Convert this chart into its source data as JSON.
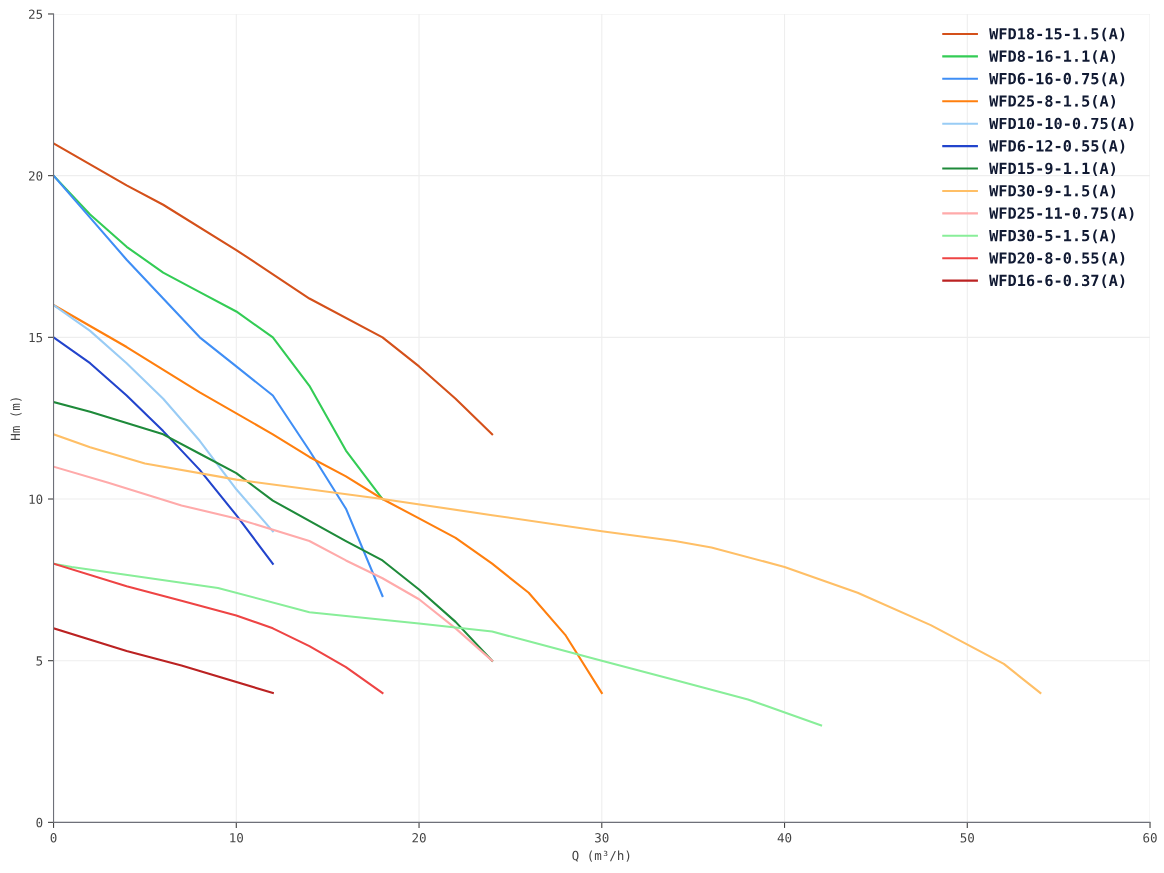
{
  "chart_data": {
    "type": "line",
    "xlabel": "Q (m³/h)",
    "ylabel": "Hm (m)",
    "xlim": [
      0,
      60
    ],
    "ylim": [
      0,
      25
    ],
    "xticks": [
      0,
      10,
      20,
      30,
      40,
      50,
      60
    ],
    "yticks": [
      0,
      5,
      10,
      15,
      20,
      25
    ],
    "grid": true,
    "legend": "top right",
    "marker": "none",
    "line_style": "solid",
    "series": [
      {
        "name": "WFD18-15-1.5(A)",
        "color": "#d4501a",
        "x": [
          0,
          4,
          6,
          10,
          14,
          18,
          20,
          22,
          24
        ],
        "values": [
          21,
          19.7,
          19.1,
          17.7,
          16.2,
          15.0,
          14.1,
          13.1,
          12
        ]
      },
      {
        "name": "WFD8-16-1.1(A)",
        "color": "#33cc55",
        "x": [
          0,
          2,
          4,
          6,
          8,
          10,
          12,
          14,
          16,
          18
        ],
        "values": [
          20,
          18.8,
          17.8,
          17.0,
          16.4,
          15.8,
          15.0,
          13.5,
          11.5,
          10
        ]
      },
      {
        "name": "WFD6-16-0.75(A)",
        "color": "#3f8ef5",
        "x": [
          0,
          2,
          4,
          6,
          8,
          10,
          12,
          14,
          16,
          18
        ],
        "values": [
          20,
          18.7,
          17.4,
          16.2,
          15.0,
          14.1,
          13.2,
          11.5,
          9.7,
          7.0
        ]
      },
      {
        "name": "WFD25-8-1.5(A)",
        "color": "#ff7f0e",
        "x": [
          0,
          4,
          8,
          12,
          14,
          16,
          18,
          20,
          22,
          24,
          26,
          28,
          30
        ],
        "values": [
          16,
          14.7,
          13.3,
          12.0,
          11.3,
          10.7,
          10,
          9.4,
          8.8,
          8.0,
          7.1,
          5.8,
          4
        ]
      },
      {
        "name": "WFD10-10-0.75(A)",
        "color": "#99ccf5",
        "x": [
          0,
          2,
          4,
          6,
          8,
          10,
          12
        ],
        "values": [
          16,
          15.2,
          14.2,
          13.1,
          11.8,
          10.3,
          9
        ]
      },
      {
        "name": "WFD6-12-0.55(A)",
        "color": "#2244cc",
        "x": [
          0,
          2,
          4,
          6,
          8,
          10,
          12
        ],
        "values": [
          15,
          14.2,
          13.2,
          12.1,
          10.9,
          9.5,
          8
        ]
      },
      {
        "name": "WFD15-9-1.1(A)",
        "color": "#1e8a3a",
        "x": [
          0,
          2,
          6,
          8,
          10,
          12,
          16,
          18,
          20,
          22,
          24
        ],
        "values": [
          13,
          12.7,
          12,
          11.4,
          10.8,
          9.95,
          8.7,
          8.1,
          7.2,
          6.2,
          5
        ]
      },
      {
        "name": "WFD30-9-1.5(A)",
        "color": "#ffbf66",
        "x": [
          0,
          2,
          5,
          10,
          18,
          24,
          30,
          34,
          36,
          40,
          44,
          48,
          52,
          54
        ],
        "values": [
          12,
          11.6,
          11.1,
          10.6,
          10,
          9.5,
          9.0,
          8.7,
          8.5,
          7.9,
          7.1,
          6.1,
          4.9,
          4
        ]
      },
      {
        "name": "WFD25-11-0.75(A)",
        "color": "#ffaaaa",
        "x": [
          0,
          3,
          7,
          10,
          14,
          16,
          18,
          20,
          22,
          24
        ],
        "values": [
          11,
          10.5,
          9.8,
          9.4,
          8.7,
          8.1,
          7.55,
          6.9,
          6.0,
          5
        ]
      },
      {
        "name": "WFD30-5-1.5(A)",
        "color": "#88ee99",
        "x": [
          0,
          1,
          9,
          14,
          20,
          24,
          26,
          28,
          30,
          34,
          38,
          42
        ],
        "values": [
          8,
          7.9,
          7.25,
          6.5,
          6.15,
          5.9,
          5.6,
          5.3,
          5.0,
          4.4,
          3.8,
          3
        ]
      },
      {
        "name": "WFD20-8-0.55(A)",
        "color": "#ee4444",
        "x": [
          0,
          4,
          7,
          10,
          12,
          14,
          16,
          18
        ],
        "values": [
          8,
          7.3,
          6.85,
          6.4,
          6.0,
          5.45,
          4.8,
          4
        ]
      },
      {
        "name": "WFD16-6-0.37(A)",
        "color": "#bb2222",
        "x": [
          0,
          4,
          7,
          12
        ],
        "values": [
          6,
          5.3,
          4.85,
          4
        ]
      }
    ]
  }
}
